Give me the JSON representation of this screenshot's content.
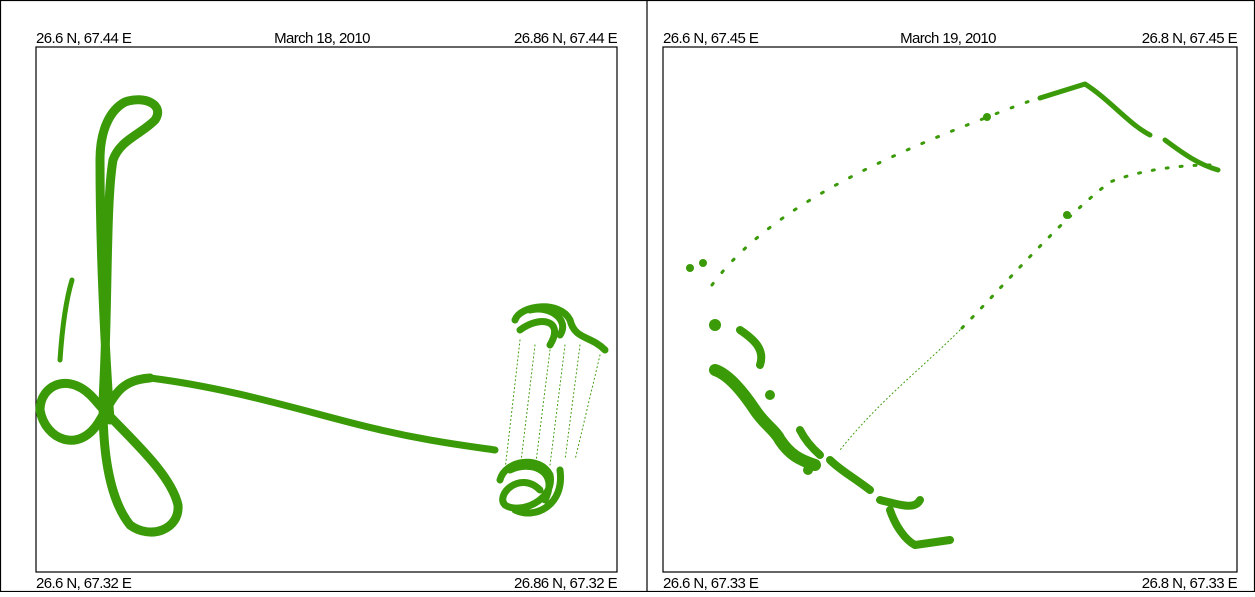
{
  "panels": [
    {
      "title": "March  18, 2010",
      "top_left": "26.6 N, 67.44 E",
      "top_right": "26.86 N, 67.44 E",
      "bottom_left": "26.6 N, 67.32 E",
      "bottom_right": "26.86 N, 67.32 E"
    },
    {
      "title": "March  19, 2010",
      "top_left": "26.6 N, 67.45 E",
      "top_right": "26.8 N, 67.45 E",
      "bottom_left": "26.6 N, 67.33 E",
      "bottom_right": "26.8 N, 67.33 E"
    }
  ]
}
